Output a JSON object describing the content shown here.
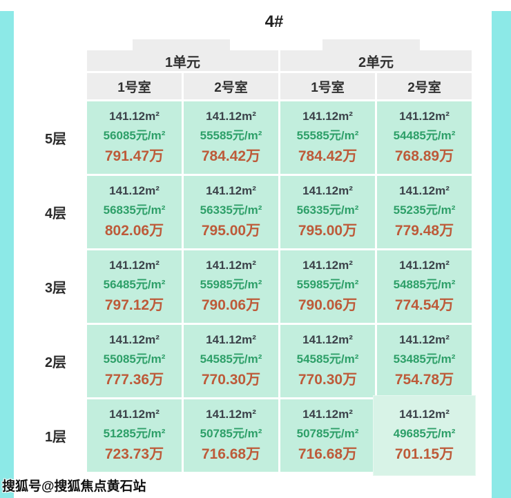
{
  "page": {
    "title": "4#",
    "watermark": "搜狐号@搜狐焦点黄石站",
    "colors": {
      "accent_stripe": "#8ce9e7",
      "header_bg": "#ededed",
      "cell_bg": "#c2eedd",
      "cell_bg_highlight": "#d8f3e7",
      "area_text": "#3b4149",
      "unit_price_text": "#2d9f68",
      "total_price_text": "#bd5a39"
    }
  },
  "table": {
    "units": [
      {
        "label": "1单元",
        "rooms": [
          "1号室",
          "2号室"
        ]
      },
      {
        "label": "2单元",
        "rooms": [
          "1号室",
          "2号室"
        ]
      }
    ],
    "room_headers": [
      "1号室",
      "2号室",
      "1号室",
      "2号室"
    ],
    "floors": [
      {
        "label": "5层",
        "cells": [
          {
            "area": "141.12m²",
            "unit_price": "56085元/m²",
            "total": "791.47万"
          },
          {
            "area": "141.12m²",
            "unit_price": "55585元/m²",
            "total": "784.42万"
          },
          {
            "area": "141.12m²",
            "unit_price": "55585元/m²",
            "total": "784.42万"
          },
          {
            "area": "141.12m²",
            "unit_price": "54485元/m²",
            "total": "768.89万"
          }
        ]
      },
      {
        "label": "4层",
        "cells": [
          {
            "area": "141.12m²",
            "unit_price": "56835元/m²",
            "total": "802.06万"
          },
          {
            "area": "141.12m²",
            "unit_price": "56335元/m²",
            "total": "795.00万"
          },
          {
            "area": "141.12m²",
            "unit_price": "56335元/m²",
            "total": "795.00万"
          },
          {
            "area": "141.12m²",
            "unit_price": "55235元/m²",
            "total": "779.48万"
          }
        ]
      },
      {
        "label": "3层",
        "cells": [
          {
            "area": "141.12m²",
            "unit_price": "56485元/m²",
            "total": "797.12万"
          },
          {
            "area": "141.12m²",
            "unit_price": "55985元/m²",
            "total": "790.06万"
          },
          {
            "area": "141.12m²",
            "unit_price": "55985元/m²",
            "total": "790.06万"
          },
          {
            "area": "141.12m²",
            "unit_price": "54885元/m²",
            "total": "774.54万"
          }
        ]
      },
      {
        "label": "2层",
        "cells": [
          {
            "area": "141.12m²",
            "unit_price": "55085元/m²",
            "total": "777.36万"
          },
          {
            "area": "141.12m²",
            "unit_price": "54585元/m²",
            "total": "770.30万"
          },
          {
            "area": "141.12m²",
            "unit_price": "54585元/m²",
            "total": "770.30万"
          },
          {
            "area": "141.12m²",
            "unit_price": "53485元/m²",
            "total": "754.78万"
          }
        ]
      },
      {
        "label": "1层",
        "cells": [
          {
            "area": "141.12m²",
            "unit_price": "51285元/m²",
            "total": "723.73万"
          },
          {
            "area": "141.12m²",
            "unit_price": "50785元/m²",
            "total": "716.68万"
          },
          {
            "area": "141.12m²",
            "unit_price": "50785元/m²",
            "total": "716.68万"
          },
          {
            "area": "141.12m²",
            "unit_price": "49685元/m²",
            "total": "701.15万",
            "highlight": true
          }
        ]
      }
    ]
  }
}
